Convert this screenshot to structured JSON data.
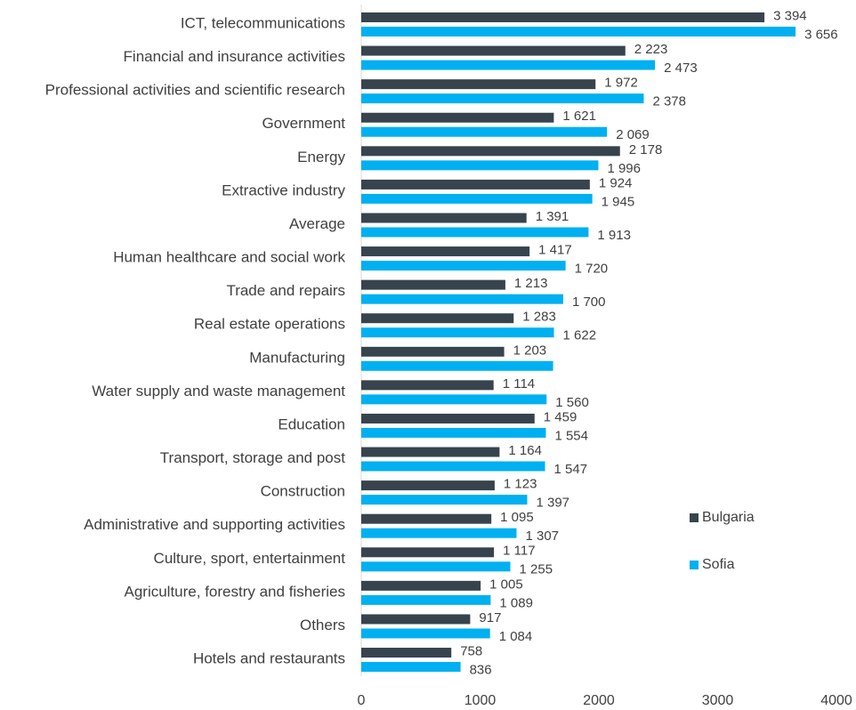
{
  "chart_data": {
    "type": "bar",
    "orientation": "horizontal",
    "categories": [
      "ICT, telecommunications",
      "Financial and insurance activities",
      "Professional activities and scientific research",
      "Government",
      "Energy",
      "Extractive industry",
      "Average",
      "Human healthcare and social work",
      "Trade and repairs",
      "Real estate operations",
      "Manufacturing",
      "Water supply and waste management",
      "Education",
      "Transport, storage and post",
      "Construction",
      "Administrative and supporting activities",
      "Culture, sport, entertainment",
      "Agriculture, forestry and fisheries",
      "Others",
      "Hotels and restaurants"
    ],
    "series": [
      {
        "name": "Bulgaria",
        "color": "#37444e",
        "values": [
          3394,
          2223,
          1972,
          1621,
          2178,
          1924,
          1391,
          1417,
          1213,
          1283,
          1203,
          1114,
          1459,
          1164,
          1123,
          1095,
          1117,
          1005,
          917,
          758
        ],
        "value_labels": [
          "3 394",
          "2 223",
          "1 972",
          "1 621",
          "2 178",
          "1 924",
          "1 391",
          "1 417",
          "1 213",
          "1 283",
          "1 203",
          "1 114",
          "1 459",
          "1 164",
          "1 123",
          "1 095",
          "1 117",
          "1 005",
          "917",
          "758"
        ]
      },
      {
        "name": "Sofia",
        "color": "#00b0f0",
        "values": [
          3656,
          2473,
          2378,
          2069,
          1996,
          1945,
          1913,
          1720,
          1700,
          1622,
          1615,
          1560,
          1554,
          1547,
          1397,
          1307,
          1255,
          1089,
          1084,
          836
        ],
        "value_labels": [
          "3 656",
          "2 473",
          "2 378",
          "2 069",
          "1 996",
          "1 945",
          "1 913",
          "1 720",
          "1 700",
          "1 622",
          null,
          "1 560",
          "1 554",
          "1 547",
          "1 397",
          "1 307",
          "1 255",
          "1 089",
          "1 084",
          "836"
        ]
      }
    ],
    "xlim": [
      0,
      4000
    ],
    "xticks": [
      0,
      1000,
      2000,
      3000,
      4000
    ],
    "legend": "right"
  }
}
